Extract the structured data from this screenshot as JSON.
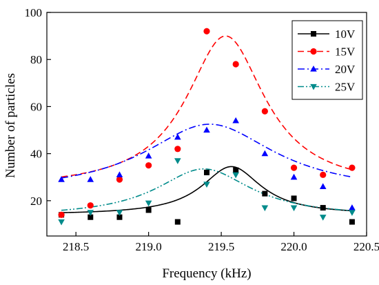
{
  "chart_data": {
    "type": "scatter",
    "title": "",
    "xlabel": "Frequency (kHz)",
    "ylabel": "Number of particles",
    "xlim": [
      218.3,
      220.5
    ],
    "ylim": [
      5,
      100
    ],
    "xticks": [
      218.5,
      219.0,
      219.5,
      220.0,
      220.5
    ],
    "xtick_labels": [
      "218.5",
      "219.0",
      "219.5",
      "220.0",
      "220.5"
    ],
    "yticks": [
      20,
      40,
      60,
      80,
      100
    ],
    "ytick_labels": [
      "20",
      "40",
      "60",
      "80",
      "100"
    ],
    "grid": false,
    "legend_position": "top-right",
    "x": [
      218.4,
      218.6,
      218.8,
      219.0,
      219.2,
      219.4,
      219.6,
      219.8,
      220.0,
      220.2,
      220.4
    ],
    "series": [
      {
        "name": "10V",
        "color": "#000000",
        "marker": "square",
        "line_style": "solid",
        "values": [
          14,
          13,
          13,
          16,
          11,
          32,
          33,
          23,
          21,
          17,
          11
        ],
        "fit": {
          "baseline": 14,
          "peak": 34.5,
          "center": 219.57,
          "width": 0.25
        }
      },
      {
        "name": "15V",
        "color": "#ff0000",
        "marker": "circle",
        "line_style": "dashed",
        "values": [
          14,
          18,
          29,
          35,
          42,
          92,
          78,
          58,
          34,
          31,
          34
        ],
        "fit": {
          "baseline": 25,
          "peak": 90,
          "center": 219.53,
          "width": 0.33
        }
      },
      {
        "name": "20V",
        "color": "#0000ff",
        "marker": "triangle-up",
        "line_style": "dashdot",
        "values": [
          29,
          29,
          31,
          39,
          47,
          50,
          54,
          40,
          30,
          26,
          17
        ],
        "fit": {
          "baseline": 23,
          "peak": 52.5,
          "center": 219.42,
          "width": 0.55
        }
      },
      {
        "name": "25V",
        "color": "#008b8b",
        "marker": "triangle-down",
        "line_style": "dashdotdot",
        "values": [
          11,
          15,
          15,
          19,
          37,
          27,
          31,
          17,
          17,
          13,
          15
        ],
        "fit": {
          "baseline": 13,
          "peak": 33.5,
          "center": 219.38,
          "width": 0.4
        }
      }
    ]
  }
}
